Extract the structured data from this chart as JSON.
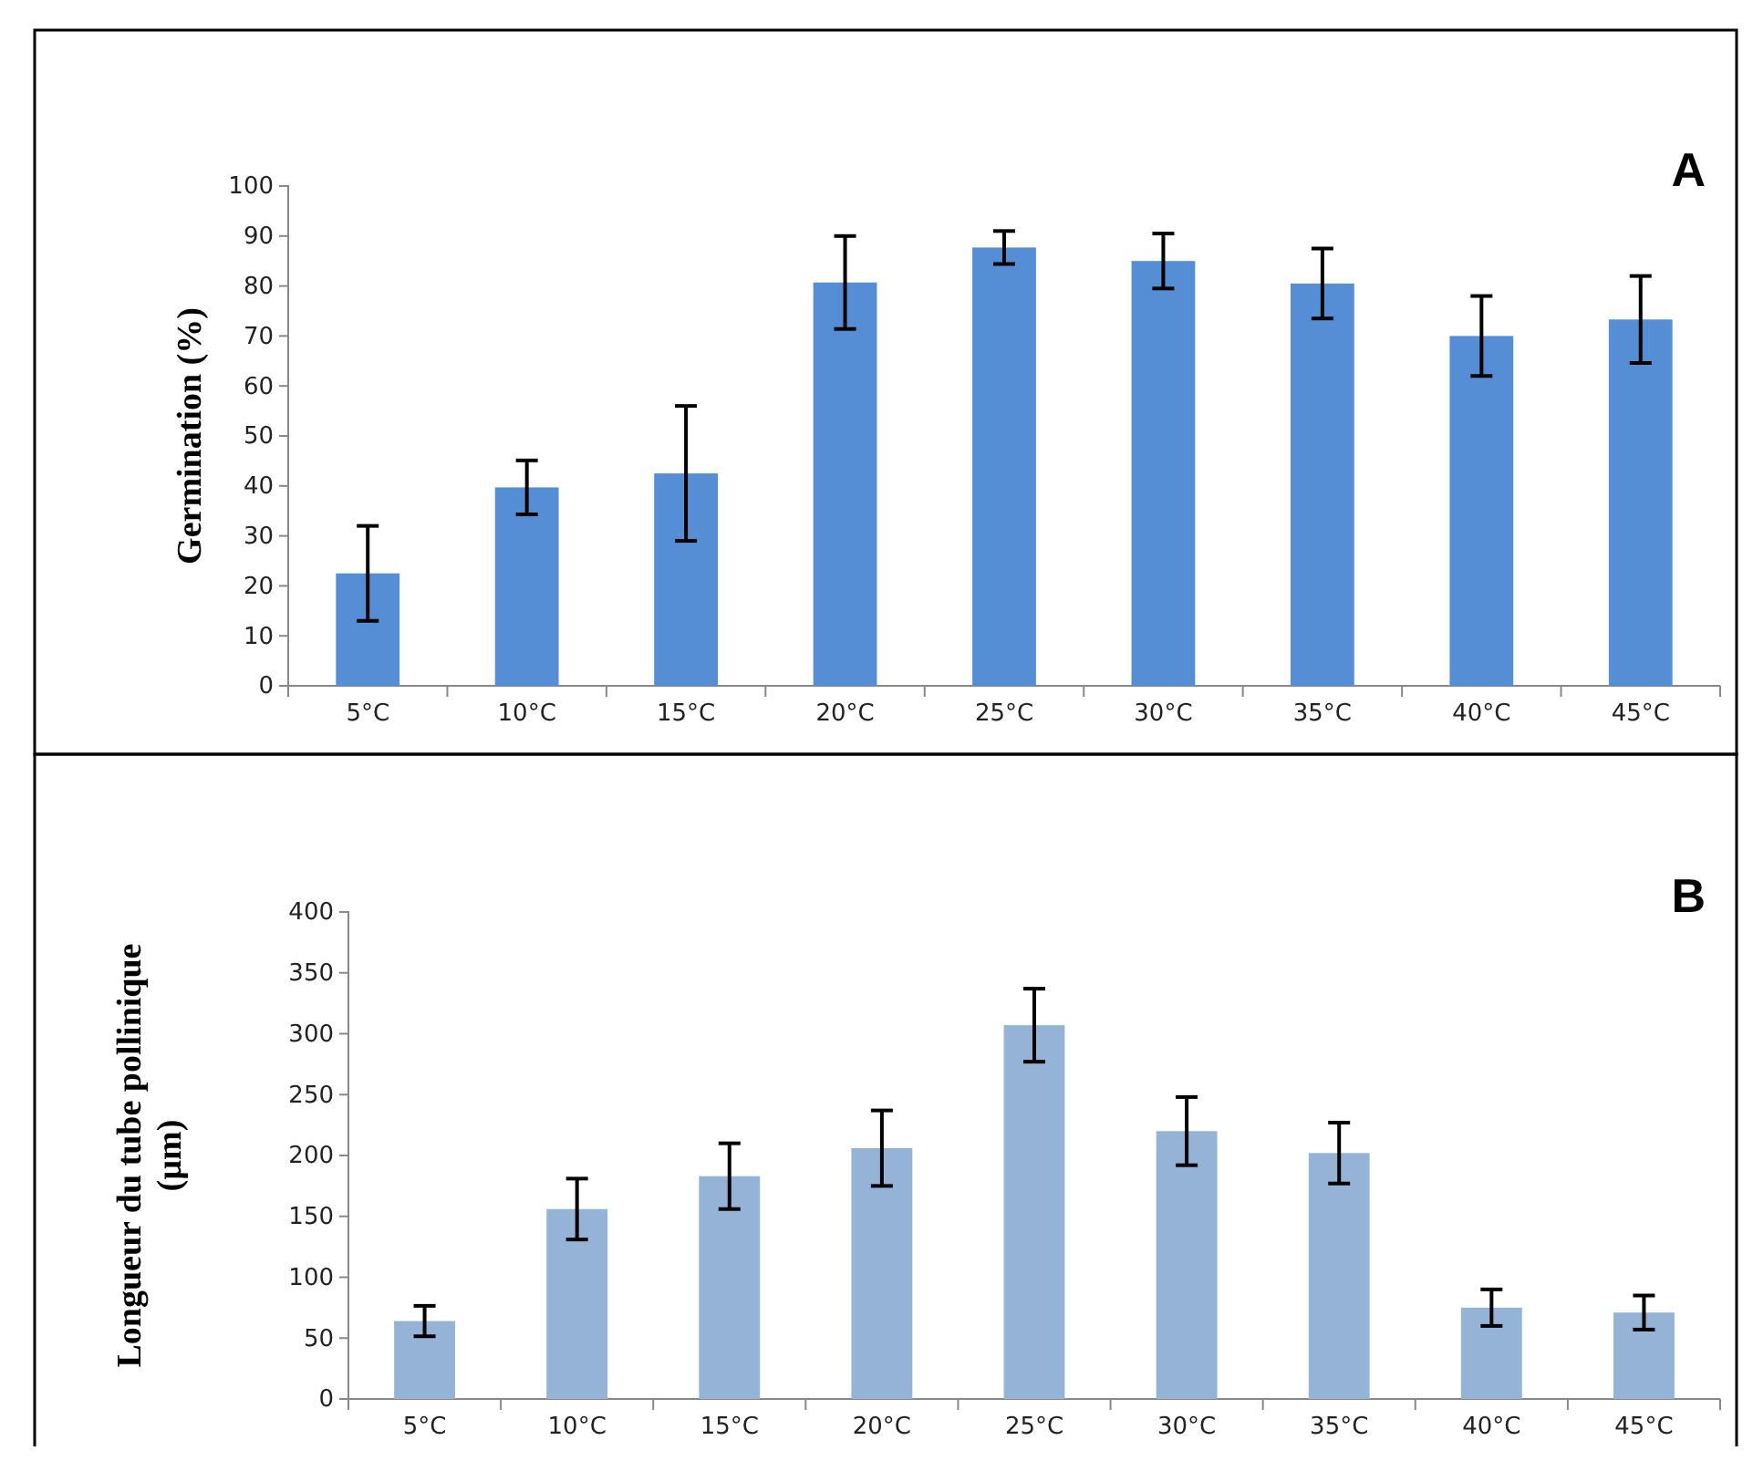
{
  "chart_data": [
    {
      "type": "bar",
      "title": "A",
      "ylabel": "Germination (%)",
      "categories": [
        "5°C",
        "10°C",
        "15°C",
        "20°C",
        "25°C",
        "30°C",
        "35°C",
        "40°C",
        "45°C"
      ],
      "series": [
        {
          "color": "#558ed5",
          "values": [
            22.5,
            39.7,
            42.5,
            80.7,
            87.7,
            85,
            80.5,
            70,
            73.3
          ],
          "errors": [
            9.5,
            5.4,
            13.5,
            9.3,
            3.3,
            5.5,
            7,
            8,
            8.7
          ]
        }
      ],
      "ylim": [
        0,
        100
      ],
      "yticks": [
        0,
        10,
        20,
        30,
        40,
        50,
        60,
        70,
        80,
        90,
        100
      ]
    },
    {
      "type": "bar",
      "title": "B",
      "ylabel": "Longueur du tube pollinique (µm)",
      "categories": [
        "5°C",
        "10°C",
        "15°C",
        "20°C",
        "25°C",
        "30°C",
        "35°C",
        "40°C",
        "45°C"
      ],
      "series": [
        {
          "color": "#95b3d7",
          "values": [
            64,
            156,
            183,
            206,
            307,
            220,
            202,
            75,
            71
          ],
          "errors": [
            12.5,
            25,
            27,
            31,
            30,
            28,
            25,
            15,
            14
          ]
        }
      ],
      "ylim": [
        0,
        400
      ],
      "yticks": [
        0,
        50,
        100,
        150,
        200,
        250,
        300,
        350,
        400
      ]
    }
  ]
}
